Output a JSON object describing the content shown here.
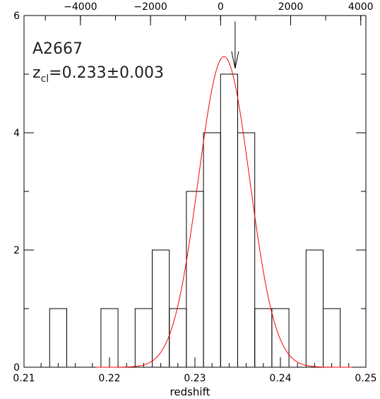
{
  "chart_data": {
    "type": "bar",
    "xlabel": "redshift",
    "ylabel": "",
    "xlim": [
      0.21,
      0.25
    ],
    "ylim": [
      0,
      6
    ],
    "x_ticks": [
      0.21,
      0.22,
      0.23,
      0.24,
      0.25
    ],
    "x_tick_labels": [
      "0.21",
      "0.22",
      "0.23",
      "0.24",
      "0.25"
    ],
    "y_ticks": [
      0,
      2,
      4,
      6
    ],
    "y_tick_labels": [
      "0",
      "2",
      "4",
      "6"
    ],
    "top_axis": {
      "label": "",
      "ticks": [
        -4000,
        -2000,
        0,
        2000,
        4000
      ],
      "tick_labels": [
        "−4000",
        "−2000",
        "0",
        "2000",
        "4000"
      ],
      "zero_at_redshift": 0.233,
      "redshift_per_1000": 0.0041
    },
    "histogram": {
      "bin_edges": [
        0.213,
        0.215,
        0.217,
        0.219,
        0.221,
        0.223,
        0.225,
        0.227,
        0.229,
        0.231,
        0.233,
        0.235,
        0.237,
        0.239,
        0.241,
        0.243,
        0.245,
        0.247
      ],
      "counts": [
        1,
        0,
        0,
        1,
        0,
        1,
        2,
        1,
        3,
        4,
        5,
        4,
        1,
        1,
        0,
        2,
        1
      ],
      "color": "#000000"
    },
    "gaussian_fit": {
      "center": 0.2334,
      "sigma": 0.003,
      "amplitude": 5.3,
      "color": "#ff0000"
    },
    "arrow_marker": {
      "x": 0.2347,
      "from_y": 5.9,
      "to_y": 5.1
    },
    "annotations": {
      "cluster": "A2667",
      "z_prefix": "z",
      "z_sub": "cl",
      "z_value": "=0.233±0.003"
    }
  }
}
